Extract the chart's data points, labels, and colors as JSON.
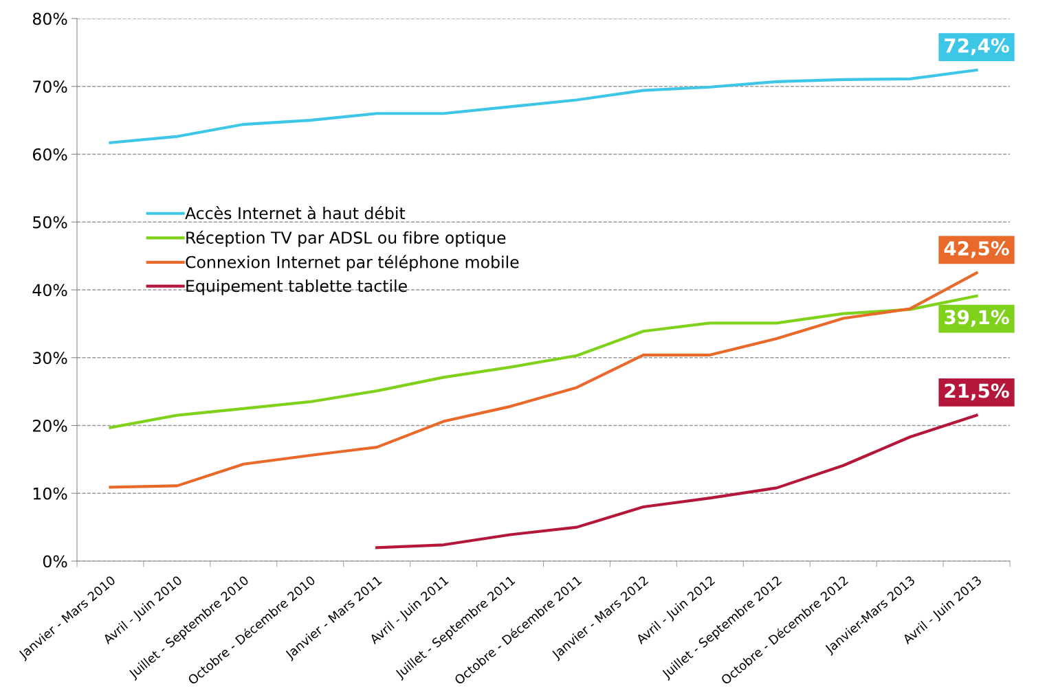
{
  "chart_data": {
    "type": "line",
    "categories": [
      "Janvier - Mars 2010",
      "Avril - Juin 2010",
      "Juillet - Septembre 2010",
      "Octobre - Décembre 2010",
      "Janvier - Mars 2011",
      "Avril - Juin 2011",
      "Juillet - Septembre 2011",
      "Octobre - Décembre 2011",
      "Janvier - Mars 2012",
      "Avril - Juin 2012",
      "Juillet - Septembre 2012",
      "Octobre - Décembre 2012",
      "Janvier-Mars 2013",
      "Avril - Juin 2013"
    ],
    "series": [
      {
        "name": "Accès Internet à haut débit",
        "color": "#3ec6e6",
        "values": [
          61.7,
          62.6,
          64.4,
          65.0,
          66.0,
          66.0,
          67.0,
          68.0,
          69.4,
          69.9,
          70.7,
          71.0,
          71.1,
          72.4
        ],
        "value_labels": [
          null,
          null,
          null,
          null,
          null,
          null,
          null,
          null,
          null,
          null,
          null,
          null,
          null,
          "72,4%"
        ]
      },
      {
        "name": "Réception TV par ADSL ou fibre optique",
        "color": "#7fd11b",
        "values": [
          19.7,
          21.5,
          22.5,
          23.5,
          25.1,
          27.1,
          28.6,
          30.3,
          33.9,
          35.1,
          35.1,
          36.5,
          37.1,
          39.1
        ],
        "value_labels": [
          null,
          null,
          null,
          null,
          null,
          null,
          null,
          null,
          null,
          null,
          null,
          null,
          null,
          "39,1%"
        ]
      },
      {
        "name": "Connexion Internet par téléphone mobile",
        "color": "#e8692a",
        "values": [
          10.9,
          11.1,
          14.3,
          15.6,
          16.8,
          20.6,
          22.8,
          25.6,
          30.4,
          30.4,
          32.8,
          35.8,
          37.2,
          42.5
        ],
        "value_labels": [
          null,
          null,
          null,
          null,
          null,
          null,
          null,
          null,
          null,
          null,
          null,
          null,
          null,
          "42,5%"
        ]
      },
      {
        "name": "Equipement tablette tactile",
        "color": "#b5173b",
        "values": [
          null,
          null,
          null,
          null,
          2.0,
          2.4,
          3.9,
          5.0,
          8.0,
          9.3,
          10.8,
          14.1,
          18.3,
          21.5
        ],
        "value_labels": [
          null,
          null,
          null,
          null,
          null,
          null,
          null,
          null,
          null,
          null,
          null,
          null,
          null,
          "21,5%"
        ]
      }
    ],
    "ylim": [
      0,
      80
    ],
    "yticks": [
      {
        "value": 0,
        "label": "0%"
      },
      {
        "value": 10,
        "label": "10%"
      },
      {
        "value": 20,
        "label": "20%"
      },
      {
        "value": 30,
        "label": "30%"
      },
      {
        "value": 40,
        "label": "40%"
      },
      {
        "value": 50,
        "label": "50%"
      },
      {
        "value": 60,
        "label": "60%"
      },
      {
        "value": 70,
        "label": "70%"
      },
      {
        "value": 80,
        "label": "80%"
      }
    ],
    "grid": "y",
    "legend": "left",
    "marker": "none",
    "line_style": "solid"
  }
}
